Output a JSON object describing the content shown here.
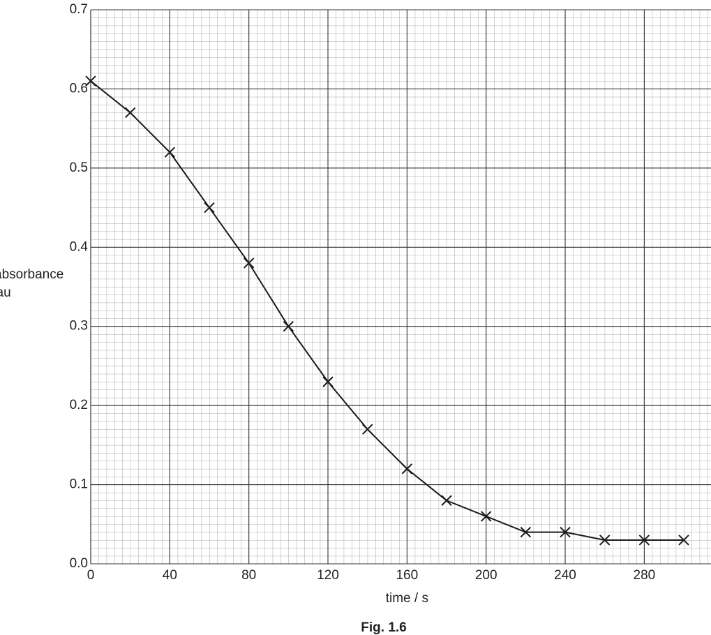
{
  "chart_data": {
    "type": "line",
    "x_label": "time / s",
    "y_label": [
      "absorbance",
      "/ au"
    ],
    "caption": "Fig. 1.6",
    "x": [
      0,
      20,
      40,
      60,
      80,
      100,
      120,
      140,
      160,
      180,
      200,
      220,
      240,
      260,
      280,
      300
    ],
    "series": [
      {
        "color": "#1a1a1a",
        "marker": "x",
        "values": [
          0.61,
          0.57,
          0.52,
          0.45,
          0.38,
          0.3,
          0.23,
          0.17,
          0.12,
          0.08,
          0.06,
          0.04,
          0.04,
          0.03,
          0.03,
          0.03
        ]
      }
    ],
    "xlim": [
      0,
      320
    ],
    "xticks": [
      0,
      40,
      80,
      120,
      160,
      200,
      240,
      280,
      320
    ],
    "ylim": [
      0,
      0.7
    ],
    "yticks": [
      {
        "value": 0,
        "label": "0.0"
      },
      0.1,
      0.2,
      0.3,
      0.4,
      0.5,
      0.6,
      0.7
    ],
    "grid": true
  }
}
